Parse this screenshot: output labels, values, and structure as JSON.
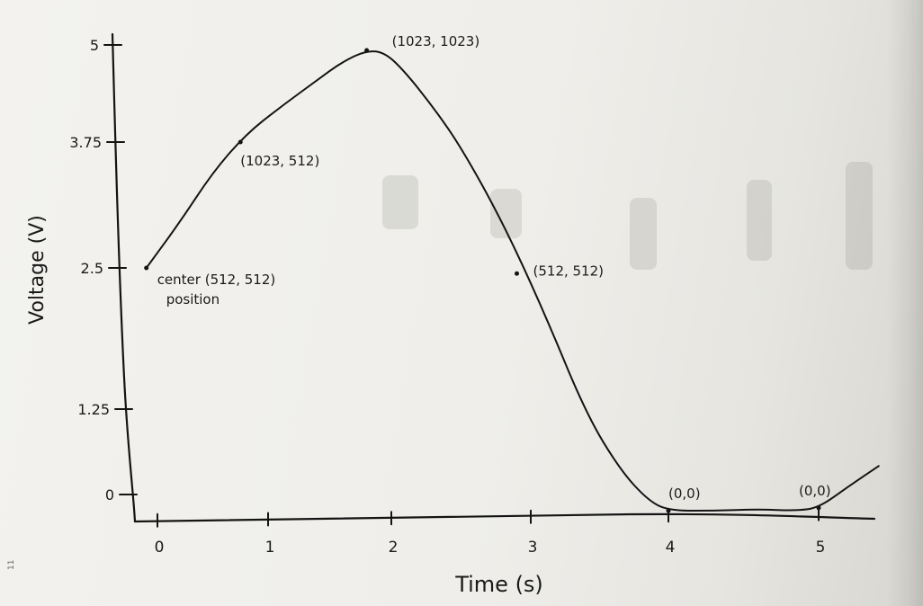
{
  "chart_data": {
    "type": "line",
    "title": "",
    "xlabel": "Time (s)",
    "ylabel": "Voltage (V)",
    "xlim": [
      0,
      5.5
    ],
    "ylim": [
      0,
      5
    ],
    "x_ticks": [
      {
        "value": 0,
        "label": "0"
      },
      {
        "value": 1,
        "label": "1"
      },
      {
        "value": 2,
        "label": "2"
      },
      {
        "value": 3,
        "label": "3"
      },
      {
        "value": 4,
        "label": "4"
      },
      {
        "value": 5,
        "label": "5"
      }
    ],
    "y_ticks": [
      {
        "value": 0,
        "label": "0"
      },
      {
        "value": 1.25,
        "label": "1.25"
      },
      {
        "value": 2.5,
        "label": "2.5"
      },
      {
        "value": 3.75,
        "label": "3.75"
      },
      {
        "value": 5,
        "label": "5"
      }
    ],
    "series": [
      {
        "x": [
          -0.1,
          0.2,
          0.5,
          0.8,
          1.1,
          1.4,
          1.6,
          1.8,
          1.95,
          2.1,
          2.3,
          2.5,
          2.8,
          3.1,
          3.4,
          3.65,
          3.85,
          4.0,
          4.3,
          4.6,
          4.85,
          5.0,
          5.2,
          5.4
        ],
        "y": [
          2.5,
          2.95,
          3.45,
          3.85,
          4.2,
          4.55,
          4.78,
          4.93,
          4.9,
          4.65,
          4.2,
          3.7,
          2.95,
          2.1,
          1.2,
          0.5,
          0.13,
          0.0,
          0.0,
          -0.02,
          0.0,
          -0.04,
          0.3,
          0.55
        ]
      }
    ],
    "annotations": [
      {
        "x": -0.1,
        "y": 2.5,
        "text": "center (512, 512)",
        "text2": "position"
      },
      {
        "x": 0.75,
        "y": 3.75,
        "text": "(1023, 512)"
      },
      {
        "x": 1.8,
        "y": 4.93,
        "text": "(1023, 1023)"
      },
      {
        "x": 2.9,
        "y": 2.45,
        "text": "(512, 512)"
      },
      {
        "x": 4.0,
        "y": 0.0,
        "text": "(0,0)"
      },
      {
        "x": 5.0,
        "y": -0.04,
        "text": "(0,0)"
      }
    ]
  },
  "side_mark": "11"
}
